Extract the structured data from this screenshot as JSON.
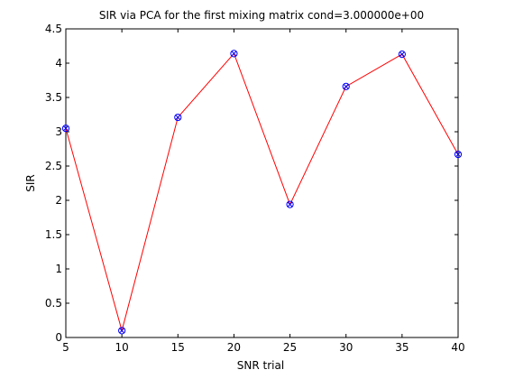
{
  "chart_data": {
    "type": "line",
    "title": "SIR via PCA for the first mixing matrix cond=3.000000e+00",
    "xlabel": "SNR trial",
    "ylabel": "SIR",
    "x": [
      5,
      10,
      15,
      20,
      25,
      30,
      35,
      40
    ],
    "series": [
      {
        "values": [
          3.05,
          0.1,
          3.21,
          4.14,
          1.94,
          3.66,
          4.13,
          2.67
        ]
      }
    ],
    "xlim": [
      5,
      40
    ],
    "ylim": [
      0,
      4.5
    ],
    "xticks": [
      "5",
      "10",
      "15",
      "20",
      "25",
      "30",
      "35",
      "40"
    ],
    "yticks": [
      "0",
      "0.5",
      "1",
      "1.5",
      "2",
      "2.5",
      "3",
      "3.5",
      "4",
      "4.5"
    ],
    "grid": false,
    "line_color": "#ff0000",
    "marker_color": "#0000ff",
    "marker": "circle-x"
  }
}
